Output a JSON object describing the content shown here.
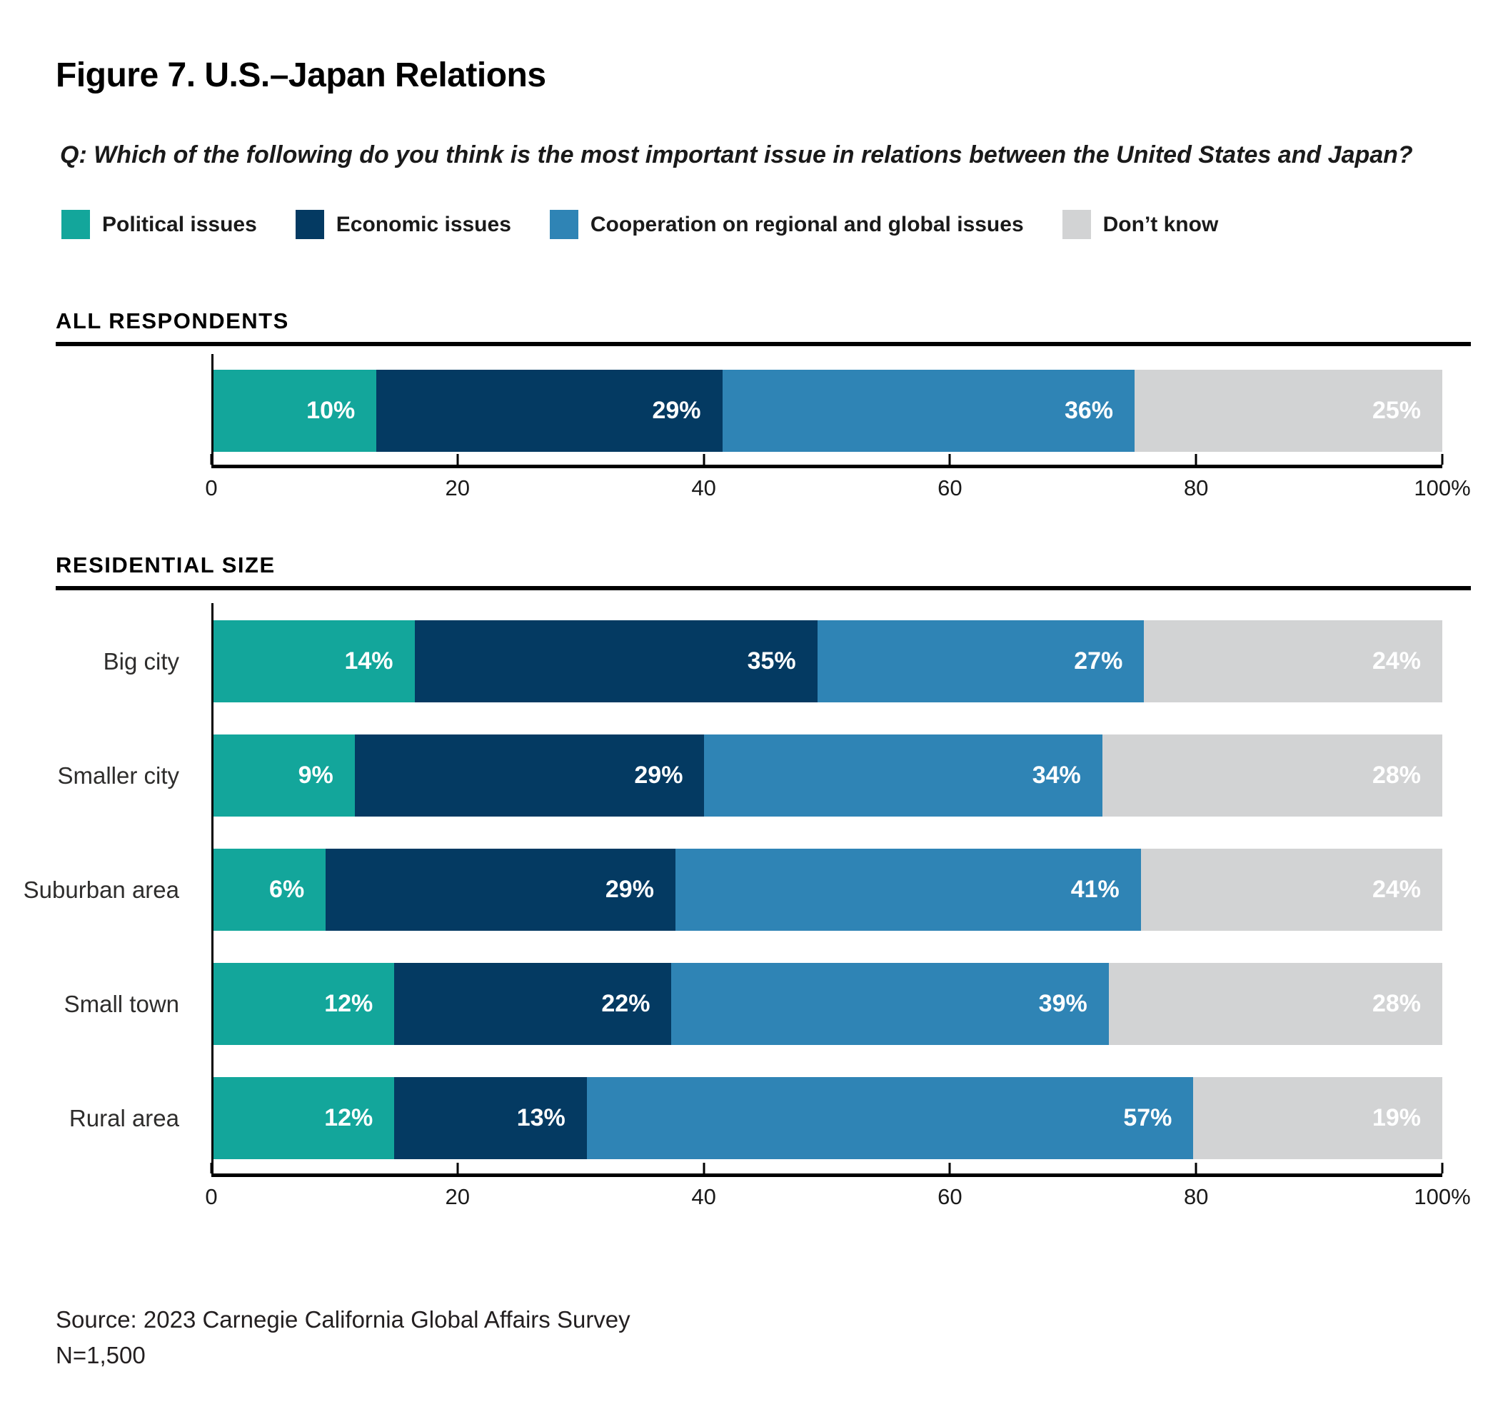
{
  "title": "Figure 7. U.S.–Japan Relations",
  "question": "Q: Which of the following do you think is the most important issue in relations between the United States and Japan?",
  "colors": {
    "political": "#13a69b",
    "economic": "#043a62",
    "cooperation": "#2f84b5",
    "dont_know": "#d2d3d4",
    "axis": "#000000"
  },
  "legend": {
    "items": [
      {
        "label": "Political issues",
        "color": "#13a69b"
      },
      {
        "label": "Economic issues",
        "color": "#043a62"
      },
      {
        "label": "Cooperation on regional and global issues",
        "color": "#2f84b5"
      },
      {
        "label": "Don’t know",
        "color": "#d2d3d4"
      }
    ]
  },
  "sections": [
    {
      "header": "ALL RESPONDENTS"
    },
    {
      "header": "RESIDENTIAL SIZE"
    }
  ],
  "chart_data": [
    {
      "type": "bar",
      "variant": "stacked-horizontal",
      "section": "ALL RESPONDENTS",
      "categories": [
        ""
      ],
      "series": [
        {
          "name": "Political issues",
          "color": "#13a69b",
          "values": [
            10
          ]
        },
        {
          "name": "Economic issues",
          "color": "#043a62",
          "values": [
            29
          ]
        },
        {
          "name": "Cooperation on regional and global issues",
          "color": "#2f84b5",
          "values": [
            36
          ]
        },
        {
          "name": "Don’t know",
          "color": "#d2d3d4",
          "values": [
            25
          ]
        }
      ],
      "value_suffix": "%",
      "xlim": [
        0,
        100
      ],
      "grid": false,
      "legend_position": "top",
      "ticks": [
        {
          "pos": 0,
          "label": "0"
        },
        {
          "pos": 20,
          "label": "20"
        },
        {
          "pos": 40,
          "label": "40"
        },
        {
          "pos": 60,
          "label": "60"
        },
        {
          "pos": 80,
          "label": "80"
        },
        {
          "pos": 100,
          "label": "100%"
        }
      ]
    },
    {
      "type": "bar",
      "variant": "stacked-horizontal",
      "section": "RESIDENTIAL SIZE",
      "categories": [
        "Big city",
        "Smaller city",
        "Suburban area",
        "Small town",
        "Rural area"
      ],
      "series": [
        {
          "name": "Political issues",
          "color": "#13a69b",
          "values": [
            14,
            9,
            6,
            12,
            12
          ]
        },
        {
          "name": "Economic issues",
          "color": "#043a62",
          "values": [
            35,
            29,
            29,
            22,
            13
          ]
        },
        {
          "name": "Cooperation on regional and global issues",
          "color": "#2f84b5",
          "values": [
            27,
            34,
            41,
            39,
            57
          ]
        },
        {
          "name": "Don’t know",
          "color": "#d2d3d4",
          "values": [
            24,
            28,
            24,
            28,
            19
          ]
        }
      ],
      "value_suffix": "%",
      "xlim": [
        0,
        100
      ],
      "grid": false,
      "legend_position": "top",
      "ticks": [
        {
          "pos": 0,
          "label": "0"
        },
        {
          "pos": 20,
          "label": "20"
        },
        {
          "pos": 40,
          "label": "40"
        },
        {
          "pos": 60,
          "label": "60"
        },
        {
          "pos": 80,
          "label": "80"
        },
        {
          "pos": 100,
          "label": "100%"
        }
      ]
    }
  ],
  "source": {
    "line1": "Source: 2023 Carnegie California Global Affairs Survey",
    "line2": "N=1,500"
  }
}
